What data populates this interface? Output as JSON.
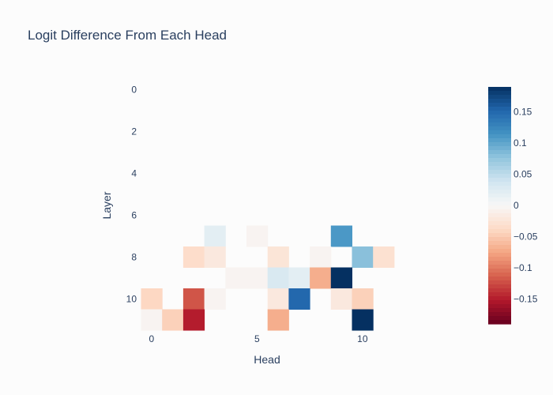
{
  "chart_data": {
    "type": "heatmap",
    "title": "Logit Difference From Each Head",
    "xlabel": "Head",
    "ylabel": "Layer",
    "x_ticks": [
      "0",
      "5",
      "10"
    ],
    "y_ticks": [
      "0",
      "2",
      "4",
      "6",
      "8",
      "10"
    ],
    "n_heads": 12,
    "n_layers": 12,
    "zmin": -0.19,
    "zmax": 0.19,
    "colorscale": "RdBu",
    "colorbar_ticks": [
      "0.15",
      "0.1",
      "0.05",
      "0",
      "−0.05",
      "−0.1",
      "−0.15"
    ],
    "colorbar_tick_values": [
      0.15,
      0.1,
      0.05,
      0,
      -0.05,
      -0.1,
      -0.15
    ],
    "cells": [
      {
        "layer": 7,
        "head": 3,
        "value": 0.02
      },
      {
        "layer": 7,
        "head": 5,
        "value": -0.005
      },
      {
        "layer": 7,
        "head": 9,
        "value": 0.11
      },
      {
        "layer": 8,
        "head": 2,
        "value": -0.035
      },
      {
        "layer": 8,
        "head": 3,
        "value": -0.02
      },
      {
        "layer": 8,
        "head": 6,
        "value": -0.025
      },
      {
        "layer": 8,
        "head": 8,
        "value": -0.005
      },
      {
        "layer": 8,
        "head": 10,
        "value": 0.08
      },
      {
        "layer": 8,
        "head": 11,
        "value": -0.03
      },
      {
        "layer": 9,
        "head": 4,
        "value": -0.005
      },
      {
        "layer": 9,
        "head": 5,
        "value": -0.005
      },
      {
        "layer": 9,
        "head": 6,
        "value": 0.03
      },
      {
        "layer": 9,
        "head": 7,
        "value": 0.02
      },
      {
        "layer": 9,
        "head": 8,
        "value": -0.07
      },
      {
        "layer": 9,
        "head": 9,
        "value": 0.19
      },
      {
        "layer": 10,
        "head": 0,
        "value": -0.04
      },
      {
        "layer": 10,
        "head": 2,
        "value": -0.12
      },
      {
        "layer": 10,
        "head": 3,
        "value": -0.005
      },
      {
        "layer": 10,
        "head": 6,
        "value": -0.02
      },
      {
        "layer": 10,
        "head": 7,
        "value": 0.15
      },
      {
        "layer": 10,
        "head": 9,
        "value": -0.02
      },
      {
        "layer": 10,
        "head": 10,
        "value": -0.045
      },
      {
        "layer": 11,
        "head": 0,
        "value": -0.005
      },
      {
        "layer": 11,
        "head": 1,
        "value": -0.045
      },
      {
        "layer": 11,
        "head": 2,
        "value": -0.15
      },
      {
        "layer": 11,
        "head": 6,
        "value": -0.07
      },
      {
        "layer": 11,
        "head": 10,
        "value": 0.19
      }
    ]
  }
}
